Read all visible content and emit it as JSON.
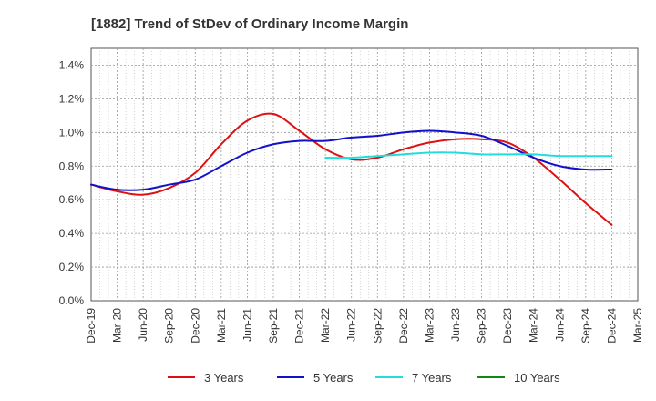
{
  "chart_data": {
    "type": "line",
    "title": "[1882]  Trend of StDev of Ordinary Income Margin",
    "xlabel": "",
    "ylabel": "",
    "ylim": [
      0,
      1.5
    ],
    "y_ticks": [
      "0.0%",
      "0.2%",
      "0.4%",
      "0.6%",
      "0.8%",
      "1.0%",
      "1.2%",
      "1.4%"
    ],
    "y_tick_values": [
      0,
      0.2,
      0.4,
      0.6,
      0.8,
      1.0,
      1.2,
      1.4
    ],
    "categories": [
      "Dec-19",
      "Mar-20",
      "Jun-20",
      "Sep-20",
      "Dec-20",
      "Mar-21",
      "Jun-21",
      "Sep-21",
      "Dec-21",
      "Mar-22",
      "Jun-22",
      "Sep-22",
      "Dec-22",
      "Mar-23",
      "Jun-23",
      "Sep-23",
      "Dec-23",
      "Mar-24",
      "Jun-24",
      "Sep-24",
      "Dec-24",
      "Mar-25"
    ],
    "grid": true,
    "legend_position": "bottom",
    "series": [
      {
        "name": "3 Years",
        "color": "#dd1111",
        "values": [
          0.69,
          0.65,
          0.63,
          0.67,
          0.76,
          0.93,
          1.07,
          1.11,
          1.01,
          0.9,
          0.84,
          0.85,
          0.9,
          0.94,
          0.96,
          0.96,
          0.94,
          0.85,
          0.72,
          0.58,
          0.45,
          null
        ]
      },
      {
        "name": "5 Years",
        "color": "#1111cc",
        "values": [
          0.69,
          0.66,
          0.66,
          0.69,
          0.72,
          0.8,
          0.88,
          0.93,
          0.95,
          0.95,
          0.97,
          0.98,
          1.0,
          1.01,
          1.0,
          0.98,
          0.92,
          0.85,
          0.8,
          0.78,
          0.78,
          null
        ]
      },
      {
        "name": "7 Years",
        "color": "#22dddd",
        "values": [
          null,
          null,
          null,
          null,
          null,
          null,
          null,
          null,
          null,
          0.85,
          0.85,
          0.86,
          0.87,
          0.88,
          0.88,
          0.87,
          0.87,
          0.87,
          0.86,
          0.86,
          0.86,
          null
        ]
      },
      {
        "name": "10 Years",
        "color": "#118811",
        "values": [
          null,
          null,
          null,
          null,
          null,
          null,
          null,
          null,
          null,
          null,
          null,
          null,
          null,
          null,
          null,
          null,
          null,
          null,
          null,
          null,
          null,
          null
        ]
      }
    ]
  }
}
